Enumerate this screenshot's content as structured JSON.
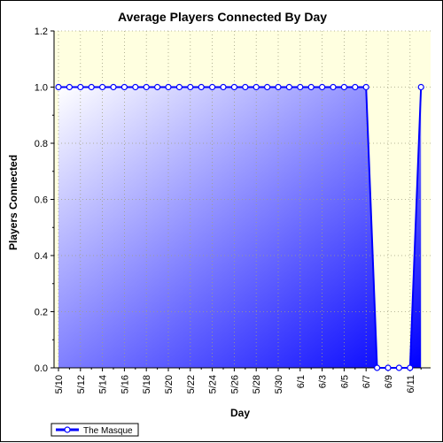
{
  "colors": {
    "plot_background": "#ffffe0",
    "series_line": "#0000ff",
    "fill_dark": "#0000ff",
    "fill_light": "#ffffff",
    "marker_fill": "#ffffff",
    "grid": "#a0a080"
  },
  "chart_data": {
    "type": "area",
    "title": "Average Players Connected By Day",
    "xlabel": "Day",
    "ylabel": "Players Connected",
    "ylim": [
      0,
      1.2
    ],
    "y_ticks": [
      "0.0",
      "0.2",
      "0.4",
      "0.6",
      "0.8",
      "1.0",
      "1.2"
    ],
    "x_tick_labels": [
      "5/10",
      "5/12",
      "5/14",
      "5/16",
      "5/18",
      "5/20",
      "5/22",
      "5/24",
      "5/26",
      "5/28",
      "5/30",
      "6/1",
      "6/3",
      "6/5",
      "6/7",
      "6/9",
      "6/11"
    ],
    "categories": [
      "5/10",
      "5/11",
      "5/12",
      "5/13",
      "5/14",
      "5/15",
      "5/16",
      "5/17",
      "5/18",
      "5/19",
      "5/20",
      "5/21",
      "5/22",
      "5/23",
      "5/24",
      "5/25",
      "5/26",
      "5/27",
      "5/28",
      "5/29",
      "5/30",
      "5/31",
      "6/1",
      "6/2",
      "6/3",
      "6/4",
      "6/5",
      "6/6",
      "6/7",
      "6/8",
      "6/9",
      "6/10",
      "6/11",
      "6/12"
    ],
    "series": [
      {
        "name": "The Masque",
        "values": [
          1,
          1,
          1,
          1,
          1,
          1,
          1,
          1,
          1,
          1,
          1,
          1,
          1,
          1,
          1,
          1,
          1,
          1,
          1,
          1,
          1,
          1,
          1,
          1,
          1,
          1,
          1,
          1,
          1,
          0,
          0,
          0,
          0,
          1
        ]
      }
    ],
    "grid": true,
    "legend_position": "bottom-left"
  }
}
